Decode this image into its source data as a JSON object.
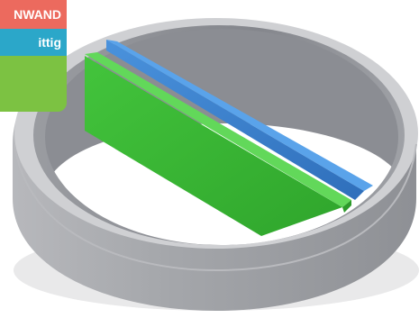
{
  "badge": {
    "top_label": "NWAND",
    "middle_label": "ittig"
  },
  "colors": {
    "badge_top": "#ec6a5e",
    "badge_middle": "#2ba7c9",
    "badge_bottom": "#7cc242",
    "ring_outer": "#a4a6ab",
    "ring_inner": "#8d8f95",
    "ring_top": "#c9cacd",
    "panel_blue": "#3f86d4",
    "panel_green": "#3fbf3a",
    "panel_green_edge": "#5fd456"
  }
}
